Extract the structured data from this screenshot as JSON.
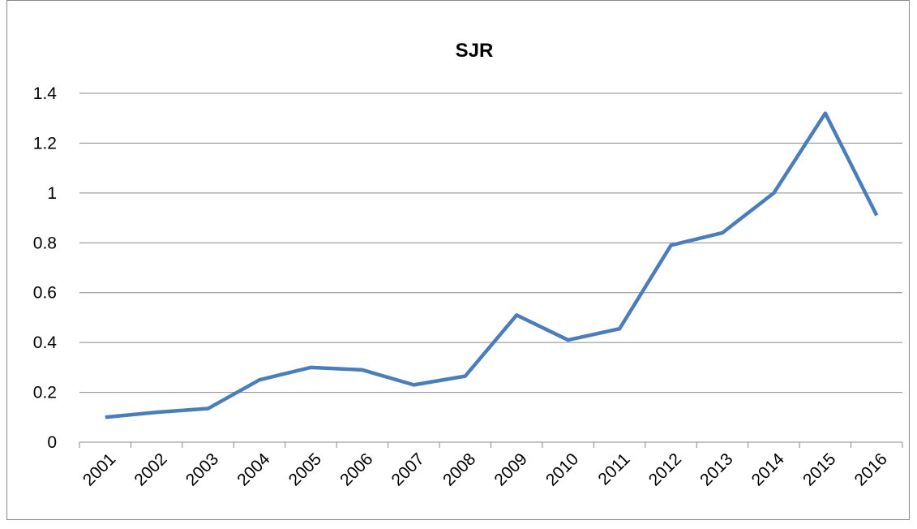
{
  "chart_data": {
    "type": "line",
    "title": "SJR",
    "categories": [
      "2001",
      "2002",
      "2003",
      "2004",
      "2005",
      "2006",
      "2007",
      "2008",
      "2009",
      "2010",
      "2011",
      "2012",
      "2013",
      "2014",
      "2015",
      "2016"
    ],
    "series": [
      {
        "name": "SJR",
        "color": "#4a7ebb",
        "values": [
          0.1,
          0.12,
          0.135,
          0.25,
          0.3,
          0.29,
          0.23,
          0.265,
          0.51,
          0.41,
          0.455,
          0.79,
          0.84,
          1.0,
          1.32,
          0.91
        ]
      }
    ],
    "ylim": [
      0,
      1.4
    ],
    "yticks": [
      0,
      0.2,
      0.4,
      0.6,
      0.8,
      1,
      1.2,
      1.4
    ],
    "grid": true
  }
}
